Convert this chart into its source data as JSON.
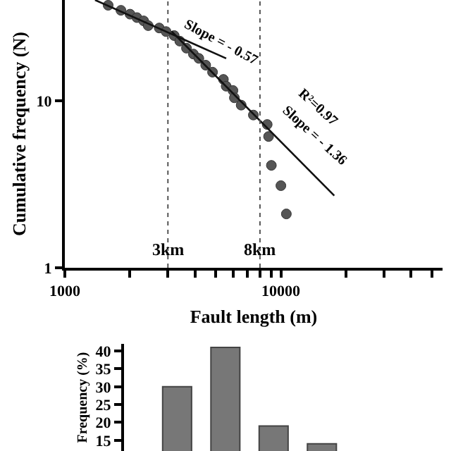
{
  "chart_data": [
    {
      "type": "scatter",
      "xlabel": "Fault length (m)",
      "ylabel": "Cumulative frequency (N)",
      "log": "xy",
      "grid": false,
      "xlim": [
        1000,
        56000
      ],
      "ylim": [
        1,
        40
      ],
      "xticks": [
        1000,
        {
          "value": 2000,
          "label": null
        },
        {
          "value": 3000,
          "label": null
        },
        {
          "value": 4000,
          "label": null
        },
        {
          "value": 5000,
          "label": null
        },
        {
          "value": 6000,
          "label": null
        },
        {
          "value": 7000,
          "label": null
        },
        {
          "value": 8000,
          "label": null
        },
        {
          "value": 9000,
          "label": null
        },
        10000,
        {
          "value": 20000,
          "label": null
        },
        {
          "value": 30000,
          "label": null
        },
        {
          "value": 40000,
          "label": null
        },
        {
          "value": 50000,
          "label": null
        }
      ],
      "yticks": [
        1,
        10
      ],
      "series": [
        {
          "marker": "circle",
          "color": "#555555",
          "x": [
            1587,
            1818,
            2004,
            2156,
            2317,
            2432,
            2735,
            2941,
            3208,
            3404,
            3656,
            3936,
            4171,
            4487,
            4826,
            5420,
            5582,
            5999,
            6092,
            6549,
            7458,
            8643,
            8770,
            9036,
            10000,
            10600
          ],
          "values": [
            37.2,
            34.7,
            32.9,
            31.4,
            30.0,
            28.1,
            27.2,
            25.9,
            24.5,
            22.7,
            20.6,
            19.0,
            17.9,
            16.3,
            14.8,
            13.4,
            12.2,
            11.5,
            10.4,
            9.4,
            8.2,
            7.2,
            6.1,
            4.1,
            3.1,
            2.1
          ]
        },
        {
          "type": "line",
          "color": "#111111",
          "line_style": "solid",
          "x": [
            1380,
            5582
          ],
          "values": [
            40,
            17.9
          ]
        },
        {
          "type": "line",
          "color": "#111111",
          "line_style": "solid",
          "x": [
            3118,
            17660
          ],
          "values": [
            26,
            2.7
          ]
        }
      ],
      "ref_lines": [
        {
          "axis": "x",
          "value": 3000,
          "label": "3km",
          "color": "#555555",
          "line_style": "dotted"
        },
        {
          "axis": "x",
          "value": 8000,
          "label": "8km",
          "color": "#555555",
          "line_style": "dotted"
        }
      ],
      "annotations": [
        "Slope = - 0.57",
        "R²=0.97",
        "Slope = - 1.36"
      ]
    },
    {
      "type": "bar",
      "ylabel": "Frequency (%)",
      "categories": [
        null,
        null,
        null,
        null
      ],
      "values": [
        30,
        41,
        19,
        14
      ],
      "color": "#777777",
      "ylim": [
        12,
        42
      ],
      "yticks": [
        15,
        20,
        25,
        30,
        35,
        40
      ],
      "grid": false,
      "tick_labels": "y"
    }
  ]
}
